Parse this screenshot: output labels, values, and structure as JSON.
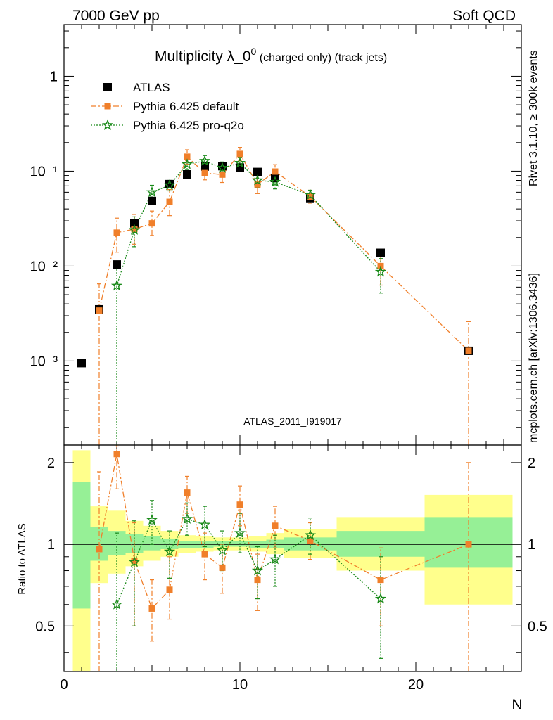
{
  "header": {
    "left": "7000 GeV pp",
    "right": "Soft QCD"
  },
  "side_labels": {
    "rivet": "Rivet 3.1.10, ≥ 300k events",
    "mcplots": "mcplots.cern.ch [arXiv:1306.3436]"
  },
  "title": {
    "main": "Multiplicity λ_0",
    "sup": "0",
    "suffix": " (charged only) (track jets)"
  },
  "watermark": "ATLAS_2011_I919017",
  "colors": {
    "data": "#000000",
    "default": "#f07f2a",
    "proq2o": "#1a8a1a",
    "band_outer": "#ffff8c",
    "band_inner": "#96f096"
  },
  "chart_data": {
    "type": "scatter",
    "x_label": "N",
    "ratio_label": "Ratio to ATLAS",
    "xlim": [
      0,
      26
    ],
    "main_ylim": [
      0.00013,
      3.5
    ],
    "main_log_y": true,
    "ratio_ylim": [
      0.34,
      2.32
    ],
    "ratio_log_y": true,
    "x_ticks": [
      "0",
      "10",
      "20"
    ],
    "main_y_ticks": [
      {
        "value": 1,
        "label": "1"
      },
      {
        "value": 0.1,
        "label": "10⁻¹"
      },
      {
        "value": 0.01,
        "label": "10⁻²"
      },
      {
        "value": 0.001,
        "label": "10⁻³"
      }
    ],
    "ratio_y_ticks": [
      {
        "value": 0.5,
        "label": "0.5"
      },
      {
        "value": 1,
        "label": "1"
      },
      {
        "value": 2,
        "label": "2"
      }
    ],
    "legend": [
      {
        "key": "atlas",
        "label": "ATLAS"
      },
      {
        "key": "default",
        "label": "Pythia 6.425 default"
      },
      {
        "key": "proq2o",
        "label": "Pythia 6.425 pro-q2o"
      }
    ],
    "atlas": {
      "name": "ATLAS",
      "x": [
        1,
        2,
        3,
        4,
        5,
        6,
        7,
        8,
        9,
        10,
        11,
        12,
        14,
        18,
        23
      ],
      "y": [
        0.00095,
        0.0035,
        0.0104,
        0.0282,
        0.0485,
        0.073,
        0.0925,
        0.112,
        0.113,
        0.109,
        0.098,
        0.085,
        0.052,
        0.0138,
        0.00128
      ],
      "band_edges": [
        0.5,
        1.5,
        2.5,
        3.5,
        4.5,
        5.5,
        6.5,
        7.5,
        8.5,
        9.5,
        10.5,
        11.5,
        12.5,
        15.5,
        20.5,
        25.5
      ],
      "band_outer": [
        [
          0.34,
          2.22
        ],
        [
          0.72,
          1.38
        ],
        [
          0.78,
          1.33
        ],
        [
          0.83,
          1.22
        ],
        [
          0.87,
          1.17
        ],
        [
          0.9,
          1.12
        ],
        [
          0.93,
          1.08
        ],
        [
          0.94,
          1.07
        ],
        [
          0.95,
          1.06
        ],
        [
          0.95,
          1.06
        ],
        [
          0.94,
          1.07
        ],
        [
          0.92,
          1.1
        ],
        [
          0.89,
          1.14
        ],
        [
          0.8,
          1.26
        ],
        [
          0.6,
          1.52
        ]
      ],
      "band_inner": [
        [
          0.58,
          1.7
        ],
        [
          0.87,
          1.16
        ],
        [
          0.91,
          1.12
        ],
        [
          0.93,
          1.09
        ],
        [
          0.95,
          1.07
        ],
        [
          0.96,
          1.05
        ],
        [
          0.97,
          1.03
        ],
        [
          0.97,
          1.03
        ],
        [
          0.98,
          1.03
        ],
        [
          0.98,
          1.03
        ],
        [
          0.97,
          1.03
        ],
        [
          0.97,
          1.04
        ],
        [
          0.95,
          1.06
        ],
        [
          0.9,
          1.12
        ],
        [
          0.82,
          1.26
        ]
      ]
    },
    "default": {
      "name": "Pythia 6.425 default",
      "x": [
        2,
        3,
        4,
        5,
        6,
        7,
        8,
        9,
        10,
        11,
        12,
        14,
        18,
        23
      ],
      "y": [
        0.0034,
        0.0225,
        0.0245,
        0.0282,
        0.0475,
        0.142,
        0.0955,
        0.092,
        0.152,
        0.0725,
        0.099,
        0.054,
        0.01,
        0.00128
      ],
      "err": [
        [
          0.0001,
          0.0065
        ],
        [
          0.014,
          0.032
        ],
        [
          0.017,
          0.035
        ],
        [
          0.021,
          0.038
        ],
        [
          0.034,
          0.064
        ],
        [
          0.118,
          0.168
        ],
        [
          0.081,
          0.111
        ],
        [
          0.076,
          0.107
        ],
        [
          0.128,
          0.178
        ],
        [
          0.058,
          0.089
        ],
        [
          0.083,
          0.117
        ],
        [
          0.046,
          0.063
        ],
        [
          0.0063,
          0.0135
        ],
        [
          0.0001,
          0.0026
        ]
      ],
      "ratio": [
        0.96,
        2.15,
        0.87,
        0.58,
        0.68,
        1.55,
        0.92,
        0.82,
        1.4,
        0.74,
        1.17,
        1.03,
        0.74,
        1.0
      ],
      "ratio_err": [
        [
          0.3,
          1.85
        ],
        [
          1.6,
          2.3
        ],
        [
          0.5,
          1.2
        ],
        [
          0.44,
          0.74
        ],
        [
          0.53,
          0.9
        ],
        [
          1.3,
          1.78
        ],
        [
          0.74,
          1.1
        ],
        [
          0.66,
          1.0
        ],
        [
          1.17,
          1.64
        ],
        [
          0.57,
          0.92
        ],
        [
          0.97,
          1.38
        ],
        [
          0.88,
          1.2
        ],
        [
          0.5,
          0.97
        ],
        [
          0.3,
          2.0
        ]
      ]
    },
    "proq2o": {
      "name": "Pythia 6.425 pro-q2o",
      "x": [
        3,
        4,
        5,
        6,
        7,
        8,
        9,
        10,
        11,
        12,
        14,
        18
      ],
      "y": [
        0.0062,
        0.024,
        0.06,
        0.071,
        0.118,
        0.128,
        0.108,
        0.122,
        0.08,
        0.077,
        0.056,
        0.0087
      ],
      "err": [
        [
          0.0001,
          0.011
        ],
        [
          0.016,
          0.033
        ],
        [
          0.049,
          0.071
        ],
        [
          0.062,
          0.08
        ],
        [
          0.104,
          0.132
        ],
        [
          0.112,
          0.146
        ],
        [
          0.092,
          0.125
        ],
        [
          0.104,
          0.14
        ],
        [
          0.067,
          0.093
        ],
        [
          0.065,
          0.09
        ],
        [
          0.049,
          0.063
        ],
        [
          0.0052,
          0.012
        ]
      ],
      "ratio": [
        0.6,
        0.86,
        1.23,
        0.94,
        1.24,
        1.18,
        0.95,
        1.1,
        0.8,
        0.88,
        1.08,
        0.63
      ],
      "ratio_err": [
        [
          0.3,
          1.1
        ],
        [
          0.5,
          1.22
        ],
        [
          1.0,
          1.45
        ],
        [
          0.75,
          1.12
        ],
        [
          1.08,
          1.42
        ],
        [
          0.98,
          1.38
        ],
        [
          0.8,
          1.12
        ],
        [
          0.93,
          1.3
        ],
        [
          0.63,
          0.98
        ],
        [
          0.7,
          1.08
        ],
        [
          0.92,
          1.25
        ],
        [
          0.38,
          0.9
        ]
      ]
    }
  }
}
